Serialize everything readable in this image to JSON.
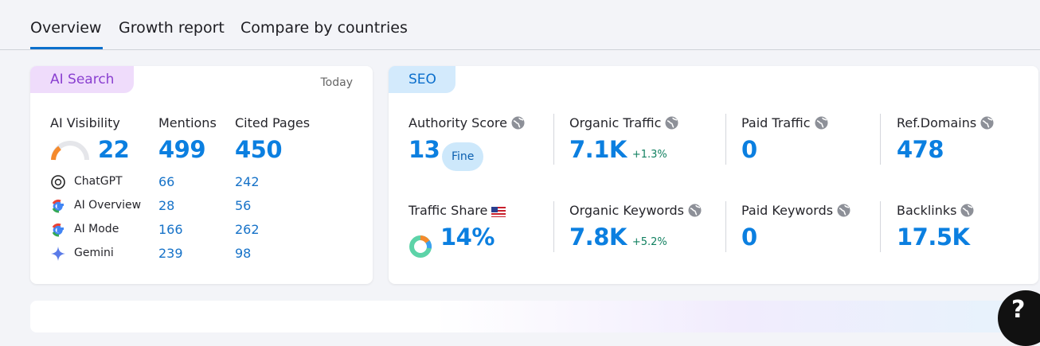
{
  "tabs": [
    "Overview",
    "Growth report",
    "Compare by countries"
  ],
  "ai_search": {
    "tag": "AI Search",
    "date": "Today",
    "headers": [
      "AI Visibility",
      "Mentions",
      "Cited Pages"
    ],
    "totals": [
      "22",
      "499",
      "450"
    ],
    "rows": [
      {
        "name": "ChatGPT",
        "mentions": "66",
        "cited": "242"
      },
      {
        "name": "AI Overview",
        "mentions": "28",
        "cited": "56"
      },
      {
        "name": "AI Mode",
        "mentions": "166",
        "cited": "262"
      },
      {
        "name": "Gemini",
        "mentions": "239",
        "cited": "98"
      }
    ]
  },
  "seo": {
    "tag": "SEO",
    "metrics": [
      {
        "label": "Authority Score",
        "value": "13",
        "badge": "Fine"
      },
      {
        "label": "Organic Traffic",
        "value": "7.1K",
        "change": "+1.3%"
      },
      {
        "label": "Paid Traffic",
        "value": "0"
      },
      {
        "label": "Ref.Domains",
        "value": "478"
      },
      {
        "label": "Traffic Share",
        "value": "14%"
      },
      {
        "label": "Organic Keywords",
        "value": "7.8K",
        "change": "+5.2%"
      },
      {
        "label": "Paid Keywords",
        "value": "0"
      },
      {
        "label": "Backlinks",
        "value": "17.5K"
      }
    ]
  },
  "help": "?"
}
